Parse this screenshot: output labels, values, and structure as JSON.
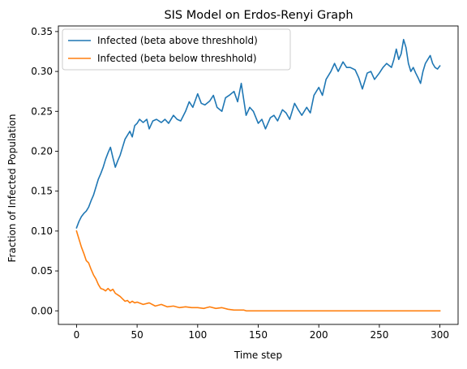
{
  "chart_data": {
    "type": "line",
    "title": "SIS Model on Erdos-Renyi Graph",
    "xlabel": "Time step",
    "ylabel": "Fraction of Infected Population",
    "xlim": [
      -15,
      315
    ],
    "ylim": [
      -0.017,
      0.357
    ],
    "x_ticks": [
      0,
      50,
      100,
      150,
      200,
      250,
      300
    ],
    "x_tick_labels": [
      "0",
      "50",
      "100",
      "150",
      "200",
      "250",
      "300"
    ],
    "y_ticks": [
      0,
      0.05,
      0.1,
      0.15,
      0.2,
      0.25,
      0.3,
      0.35
    ],
    "y_tick_labels": [
      "0.00",
      "0.05",
      "0.10",
      "0.15",
      "0.20",
      "0.25",
      "0.30",
      "0.35"
    ],
    "grid": false,
    "legend_position": "upper-left",
    "series": [
      {
        "name": "Infected (beta above threshhold)",
        "color": "#1f77b4",
        "x": [
          0,
          2,
          4,
          6,
          8,
          10,
          12,
          14,
          16,
          18,
          20,
          22,
          24,
          26,
          28,
          30,
          32,
          34,
          36,
          38,
          40,
          42,
          44,
          46,
          48,
          50,
          52,
          55,
          58,
          60,
          63,
          66,
          70,
          73,
          76,
          80,
          83,
          86,
          90,
          93,
          96,
          100,
          103,
          106,
          110,
          113,
          116,
          120,
          123,
          126,
          130,
          133,
          136,
          140,
          143,
          146,
          150,
          153,
          156,
          160,
          163,
          166,
          170,
          173,
          176,
          180,
          183,
          186,
          190,
          193,
          196,
          200,
          203,
          206,
          210,
          213,
          216,
          220,
          223,
          226,
          230,
          233,
          236,
          240,
          243,
          246,
          250,
          253,
          256,
          260,
          262,
          264,
          266,
          268,
          270,
          272,
          274,
          276,
          278,
          280,
          282,
          284,
          286,
          288,
          290,
          292,
          294,
          296,
          298,
          300
        ],
        "y": [
          0.104,
          0.112,
          0.118,
          0.122,
          0.125,
          0.13,
          0.138,
          0.145,
          0.155,
          0.165,
          0.172,
          0.18,
          0.19,
          0.198,
          0.205,
          0.192,
          0.18,
          0.188,
          0.195,
          0.205,
          0.215,
          0.22,
          0.225,
          0.218,
          0.232,
          0.235,
          0.24,
          0.236,
          0.24,
          0.228,
          0.238,
          0.24,
          0.236,
          0.24,
          0.235,
          0.245,
          0.24,
          0.238,
          0.25,
          0.262,
          0.255,
          0.272,
          0.26,
          0.258,
          0.263,
          0.27,
          0.255,
          0.25,
          0.267,
          0.27,
          0.275,
          0.262,
          0.285,
          0.245,
          0.255,
          0.25,
          0.235,
          0.24,
          0.228,
          0.242,
          0.245,
          0.238,
          0.252,
          0.248,
          0.24,
          0.26,
          0.252,
          0.245,
          0.255,
          0.248,
          0.27,
          0.28,
          0.27,
          0.29,
          0.3,
          0.31,
          0.3,
          0.312,
          0.305,
          0.305,
          0.302,
          0.292,
          0.278,
          0.298,
          0.3,
          0.29,
          0.298,
          0.305,
          0.31,
          0.305,
          0.315,
          0.328,
          0.315,
          0.322,
          0.34,
          0.33,
          0.31,
          0.3,
          0.305,
          0.298,
          0.292,
          0.285,
          0.3,
          0.31,
          0.315,
          0.32,
          0.31,
          0.305,
          0.303,
          0.307
        ]
      },
      {
        "name": "Infected (beta below threshhold)",
        "color": "#ff7f0e",
        "x": [
          0,
          2,
          4,
          6,
          8,
          10,
          12,
          14,
          16,
          18,
          20,
          22,
          24,
          26,
          28,
          30,
          32,
          34,
          36,
          38,
          40,
          42,
          44,
          46,
          48,
          50,
          55,
          60,
          65,
          70,
          75,
          80,
          85,
          90,
          95,
          100,
          105,
          110,
          115,
          120,
          125,
          130,
          135,
          138,
          140,
          150,
          160,
          180,
          200,
          220,
          240,
          260,
          280,
          300
        ],
        "y": [
          0.1,
          0.09,
          0.08,
          0.072,
          0.063,
          0.06,
          0.052,
          0.045,
          0.04,
          0.033,
          0.028,
          0.027,
          0.025,
          0.028,
          0.025,
          0.027,
          0.022,
          0.02,
          0.018,
          0.015,
          0.012,
          0.013,
          0.01,
          0.012,
          0.01,
          0.011,
          0.008,
          0.01,
          0.006,
          0.008,
          0.005,
          0.006,
          0.004,
          0.005,
          0.004,
          0.004,
          0.003,
          0.005,
          0.003,
          0.004,
          0.002,
          0.001,
          0.001,
          0.001,
          0,
          0,
          0,
          0,
          0,
          0,
          0,
          0,
          0,
          0
        ]
      }
    ]
  }
}
